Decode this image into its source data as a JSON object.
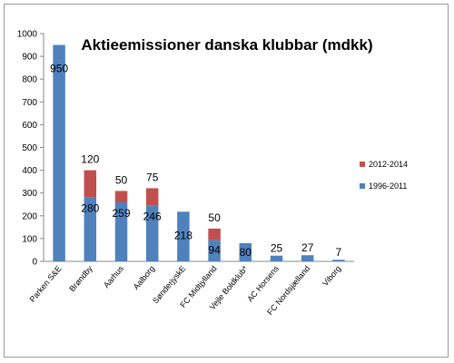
{
  "chart_data": {
    "type": "bar",
    "stacked": true,
    "title": "Aktieemissioner danska klubbar (mdkk)",
    "xlabel": "",
    "ylabel": "",
    "ylim": [
      0,
      1000
    ],
    "yticks": [
      0,
      100,
      200,
      300,
      400,
      500,
      600,
      700,
      800,
      900,
      1000
    ],
    "grid": false,
    "legend_position": "right",
    "categories": [
      "Parken S&E",
      "Brøndby",
      "Aarhus",
      "Aalborg",
      "SønderjyskE",
      "FC Midtjylland",
      "Vejle Boldklub*",
      "AC Horsens",
      "FC Nordsjælland",
      "Viborg"
    ],
    "series": [
      {
        "name": "1996-2011",
        "color": "#4F81BD",
        "values": [
          950,
          280,
          259,
          246,
          218,
          94,
          80,
          25,
          27,
          7
        ],
        "labels": [
          "950",
          "280",
          "259",
          "246",
          "218",
          "94",
          "80",
          "25",
          "27",
          "7"
        ]
      },
      {
        "name": "2012-2014",
        "color": "#C0504D",
        "values": [
          0,
          120,
          50,
          75,
          0,
          50,
          0,
          0,
          0,
          0
        ],
        "labels": [
          "",
          "120",
          "50",
          "75",
          "",
          "50",
          "",
          "",
          "",
          ""
        ]
      }
    ]
  }
}
